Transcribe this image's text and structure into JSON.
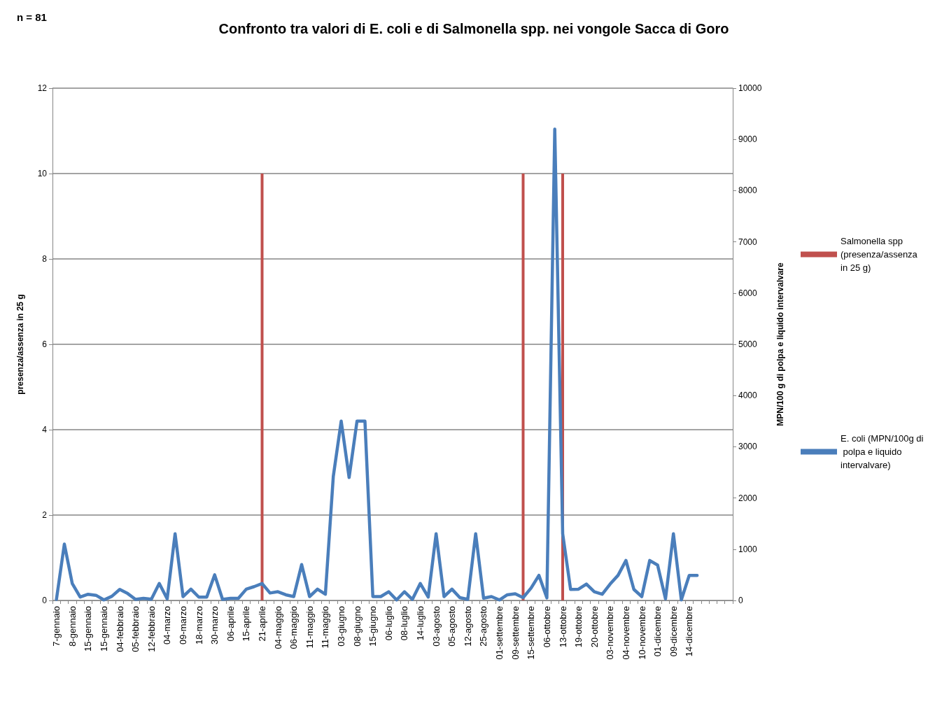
{
  "chart_data": {
    "type": "bar",
    "title": "Confronto tra valori di E. coli e di Salmonella spp. nei vongole Sacca di Goro",
    "annotations": [
      "n = 81"
    ],
    "ylabel": "presenza/assenza in 25 g",
    "y2label": "MPN/100 g di polpa e liquido intervalvare",
    "categories": [
      "7-gennaio",
      null,
      "8-gennaio",
      null,
      "15-gennaio",
      null,
      "15-gennaio",
      null,
      "04-febbraio",
      null,
      "05-febbraio",
      null,
      "12-febbraio",
      null,
      "04-marzo",
      null,
      "09-marzo",
      null,
      "18-marzo",
      null,
      "30-marzo",
      null,
      "06-aprile",
      null,
      "15-aprile",
      null,
      "21-aprile",
      null,
      "04-maggio",
      null,
      "06-maggio",
      null,
      "11-maggio",
      null,
      "11-maggio",
      null,
      "03-giugno",
      null,
      "08-giugno",
      null,
      "15-giugno",
      null,
      "06-luglio",
      null,
      "08-luglio",
      null,
      "14-luglio",
      null,
      "03-agosto",
      null,
      "05-agosto",
      null,
      "12-agosto",
      null,
      "25-agosto",
      null,
      "01-settembre",
      null,
      "09-settembre",
      null,
      "15-settembre",
      null,
      "06-ottobre",
      null,
      "13-ottobre",
      null,
      "19-ottobre",
      null,
      "20-ottobre",
      null,
      "03-novembre",
      null,
      "04-novembre",
      null,
      "10-novembre",
      null,
      "01-dicembre",
      null,
      "09-dicembre",
      null,
      "14-dicembre",
      null,
      null,
      null,
      null,
      null
    ],
    "series": [
      {
        "name": "Salmonella spp (presenza/assenza in 25 g)",
        "color": "#c0504d",
        "values": [
          0,
          0,
          0,
          0,
          0,
          0,
          0,
          0,
          0,
          0,
          0,
          0,
          0,
          0,
          0,
          0,
          0,
          0,
          0,
          0,
          0,
          0,
          0,
          0,
          0,
          0,
          10,
          0,
          0,
          0,
          0,
          0,
          0,
          0,
          0,
          0,
          0,
          0,
          0,
          0,
          0,
          0,
          0,
          0,
          0,
          0,
          0,
          0,
          0,
          0,
          0,
          0,
          0,
          0,
          0,
          0,
          0,
          0,
          0,
          10,
          0,
          0,
          0,
          0,
          10,
          0,
          0,
          0,
          0,
          0,
          0,
          0,
          0,
          0,
          0,
          0,
          0,
          0,
          0,
          0,
          0,
          0,
          null,
          null,
          null,
          null
        ]
      },
      {
        "name": "E. coli (MPN/100g di polpa e liquido intervalvare)",
        "type": "line",
        "axis": "y2",
        "color": "#4a7ebb",
        "values": [
          20,
          1100,
          330,
          65,
          120,
          100,
          10,
          80,
          215,
          135,
          20,
          40,
          25,
          330,
          30,
          1300,
          75,
          220,
          65,
          65,
          500,
          20,
          40,
          40,
          220,
          270,
          330,
          145,
          170,
          110,
          75,
          700,
          75,
          220,
          120,
          2420,
          3500,
          2400,
          3500,
          3500,
          75,
          75,
          170,
          10,
          170,
          20,
          330,
          65,
          1300,
          75,
          220,
          55,
          20,
          1300,
          45,
          75,
          10,
          110,
          130,
          55,
          240,
          490,
          50,
          9200,
          1300,
          215,
          220,
          320,
          170,
          120,
          320,
          490,
          780,
          215,
          75,
          780,
          690,
          30,
          1300,
          10,
          490,
          490,
          null,
          null,
          null,
          null
        ]
      }
    ],
    "ylim": [
      0,
      12
    ],
    "yticks": [
      0,
      2,
      4,
      6,
      8,
      10,
      12
    ],
    "y2lim": [
      0,
      10000
    ],
    "y2ticks": [
      0,
      1000,
      2000,
      3000,
      4000,
      5000,
      6000,
      7000,
      8000,
      9000,
      10000
    ],
    "grid": "y",
    "legend": "right",
    "marker": "none",
    "line_style": "solid"
  }
}
